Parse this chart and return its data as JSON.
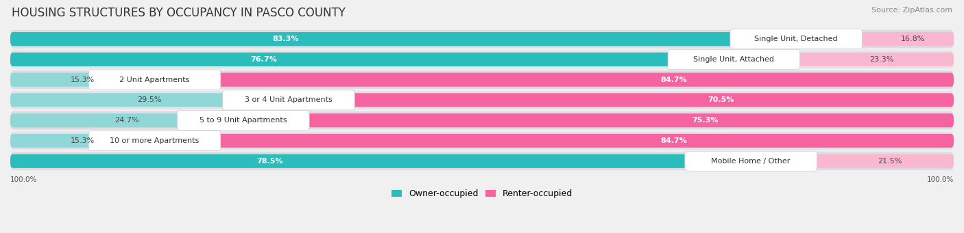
{
  "title": "HOUSING STRUCTURES BY OCCUPANCY IN PASCO COUNTY",
  "source": "Source: ZipAtlas.com",
  "categories": [
    "Single Unit, Detached",
    "Single Unit, Attached",
    "2 Unit Apartments",
    "3 or 4 Unit Apartments",
    "5 to 9 Unit Apartments",
    "10 or more Apartments",
    "Mobile Home / Other"
  ],
  "owner_pct": [
    83.3,
    76.7,
    15.3,
    29.5,
    24.7,
    15.3,
    78.5
  ],
  "renter_pct": [
    16.8,
    23.3,
    84.7,
    70.5,
    75.3,
    84.7,
    21.5
  ],
  "owner_color": "#2bbcbc",
  "owner_color_light": "#90d8d8",
  "renter_color": "#f564a0",
  "renter_color_light": "#f9b8d0",
  "bg_color": "#f0f0f0",
  "row_bg_dark": "#dcdce0",
  "row_bg_light": "#e8e8ec",
  "title_fontsize": 12,
  "source_fontsize": 8,
  "pct_fontsize": 8,
  "cat_fontsize": 8,
  "legend_fontsize": 9
}
